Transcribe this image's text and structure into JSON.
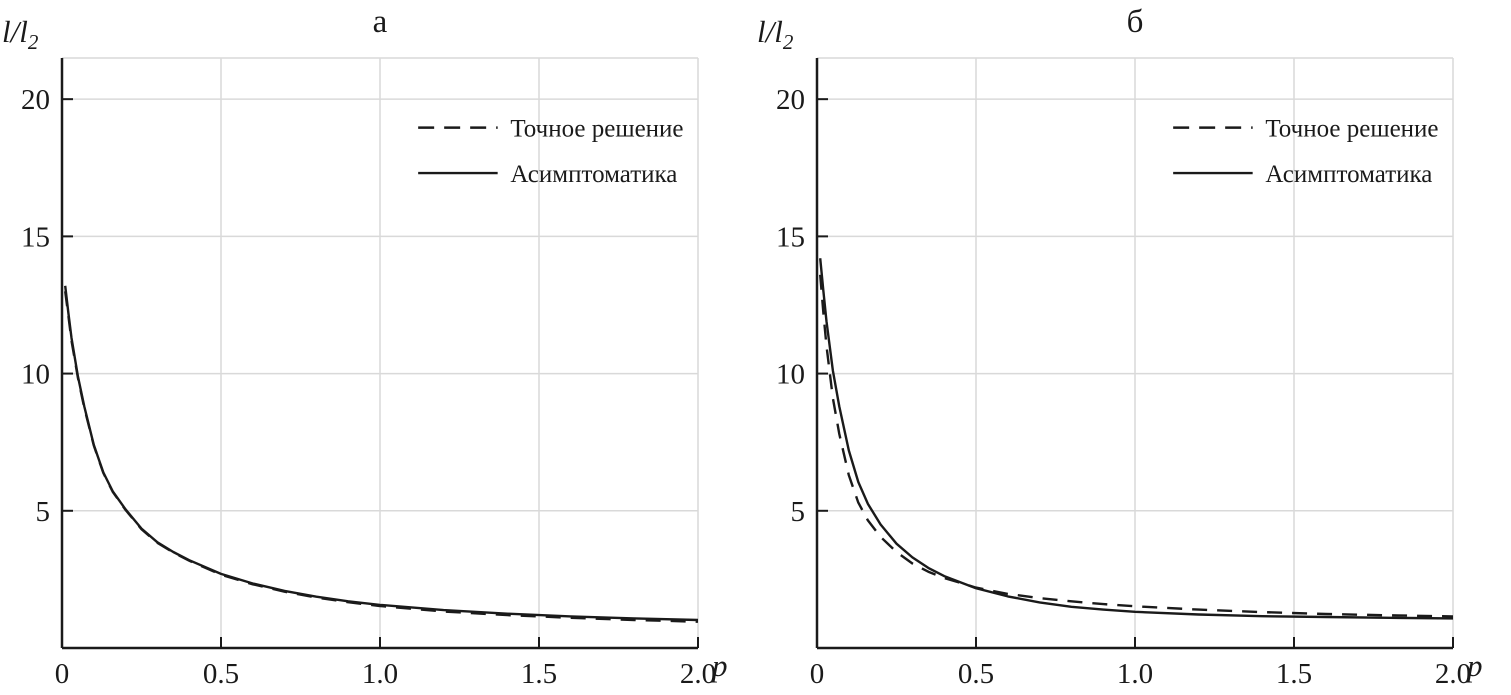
{
  "figure": {
    "background": "#ffffff",
    "axis_color": "#1a1a1a",
    "grid_color": "#d9d9d9",
    "line_color": "#1a1a1a"
  },
  "chart_data": [
    {
      "type": "line",
      "title": "а",
      "xlabel": "p",
      "ylabel_main": "l/l",
      "ylabel_sub": "2",
      "xlim": [
        0,
        2.0
      ],
      "ylim": [
        0,
        21.5
      ],
      "xticks": [
        0,
        0.5,
        1.0,
        1.5,
        2.0
      ],
      "xtick_labels": [
        "0",
        "0.5",
        "1.0",
        "1.5",
        "2.0"
      ],
      "yticks": [
        5,
        10,
        15,
        20
      ],
      "ytick_labels": [
        "5",
        "10",
        "15",
        "20"
      ],
      "grid": true,
      "legend": {
        "position": "upper-right",
        "entries": [
          {
            "label": "Точное решение",
            "style": "dashed"
          },
          {
            "label": "Асимптоматика",
            "style": "solid"
          }
        ]
      },
      "series": [
        {
          "name": "Асимптоматика",
          "style": "solid",
          "x": [
            0.01,
            0.02,
            0.03,
            0.05,
            0.07,
            0.1,
            0.13,
            0.16,
            0.2,
            0.25,
            0.3,
            0.35,
            0.4,
            0.5,
            0.6,
            0.7,
            0.8,
            0.9,
            1.0,
            1.2,
            1.4,
            1.6,
            1.8,
            2.0
          ],
          "y": [
            13.2,
            12.2,
            11.3,
            9.9,
            8.8,
            7.4,
            6.4,
            5.7,
            5.05,
            4.35,
            3.85,
            3.5,
            3.2,
            2.7,
            2.35,
            2.08,
            1.87,
            1.7,
            1.57,
            1.38,
            1.25,
            1.15,
            1.08,
            1.02
          ]
        },
        {
          "name": "Точное решение",
          "style": "dashed",
          "x": [
            0.01,
            0.02,
            0.03,
            0.05,
            0.07,
            0.1,
            0.13,
            0.16,
            0.2,
            0.25,
            0.3,
            0.35,
            0.4,
            0.5,
            0.6,
            0.7,
            0.8,
            0.9,
            1.0,
            1.2,
            1.4,
            1.6,
            1.8,
            2.0
          ],
          "y": [
            13.0,
            12.1,
            11.2,
            9.85,
            8.75,
            7.38,
            6.38,
            5.68,
            5.03,
            4.33,
            3.83,
            3.48,
            3.18,
            2.67,
            2.32,
            2.05,
            1.84,
            1.67,
            1.53,
            1.33,
            1.2,
            1.1,
            1.02,
            0.96
          ]
        }
      ]
    },
    {
      "type": "line",
      "title": "б",
      "xlabel": "p",
      "ylabel_main": "l/l",
      "ylabel_sub": "2",
      "xlim": [
        0,
        2.0
      ],
      "ylim": [
        0,
        21.5
      ],
      "xticks": [
        0,
        0.5,
        1.0,
        1.5,
        2.0
      ],
      "xtick_labels": [
        "0",
        "0.5",
        "1.0",
        "1.5",
        "2.0"
      ],
      "yticks": [
        5,
        10,
        15,
        20
      ],
      "ytick_labels": [
        "5",
        "10",
        "15",
        "20"
      ],
      "grid": true,
      "legend": {
        "position": "upper-right",
        "entries": [
          {
            "label": "Точное решение",
            "style": "dashed"
          },
          {
            "label": "Асимптоматика",
            "style": "solid"
          }
        ]
      },
      "series": [
        {
          "name": "Асимптоматика",
          "style": "solid",
          "x": [
            0.01,
            0.02,
            0.03,
            0.05,
            0.07,
            0.1,
            0.13,
            0.16,
            0.2,
            0.25,
            0.3,
            0.35,
            0.4,
            0.5,
            0.6,
            0.7,
            0.8,
            0.9,
            1.0,
            1.2,
            1.4,
            1.6,
            1.8,
            2.0
          ],
          "y": [
            14.2,
            13.0,
            11.9,
            10.1,
            8.8,
            7.2,
            6.05,
            5.25,
            4.5,
            3.8,
            3.3,
            2.92,
            2.62,
            2.18,
            1.88,
            1.66,
            1.5,
            1.4,
            1.32,
            1.22,
            1.16,
            1.13,
            1.1,
            1.08
          ]
        },
        {
          "name": "Точное решение",
          "style": "dashed",
          "x": [
            0.01,
            0.02,
            0.03,
            0.05,
            0.07,
            0.1,
            0.13,
            0.16,
            0.2,
            0.25,
            0.3,
            0.35,
            0.4,
            0.5,
            0.6,
            0.7,
            0.8,
            0.9,
            1.0,
            1.2,
            1.4,
            1.6,
            1.8,
            2.0
          ],
          "y": [
            13.6,
            12.2,
            11.0,
            9.1,
            7.8,
            6.3,
            5.3,
            4.65,
            4.05,
            3.5,
            3.08,
            2.78,
            2.55,
            2.2,
            1.97,
            1.82,
            1.7,
            1.6,
            1.52,
            1.4,
            1.31,
            1.24,
            1.19,
            1.15
          ]
        }
      ]
    }
  ]
}
